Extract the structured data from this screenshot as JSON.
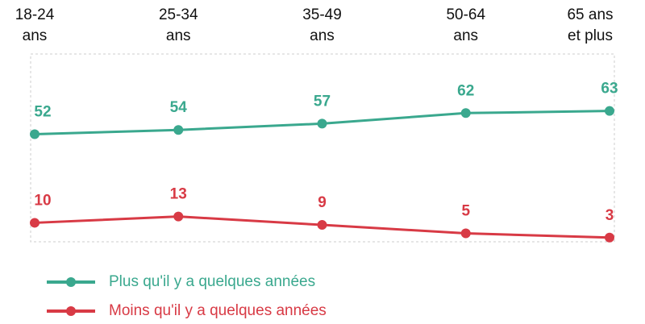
{
  "chart_data": {
    "type": "line",
    "categories": [
      "18-24\nans",
      "25-34\nans",
      "35-49\nans",
      "50-64\nans",
      "65 ans\net plus"
    ],
    "series": [
      {
        "name": "Plus qu'il y a quelques années",
        "color": "#3aa88e",
        "values": [
          52,
          54,
          57,
          62,
          63
        ]
      },
      {
        "name": "Moins qu'il y a quelques années",
        "color": "#d83a45",
        "values": [
          10,
          13,
          9,
          5,
          3
        ]
      }
    ],
    "ylim": [
      1,
      90
    ]
  }
}
